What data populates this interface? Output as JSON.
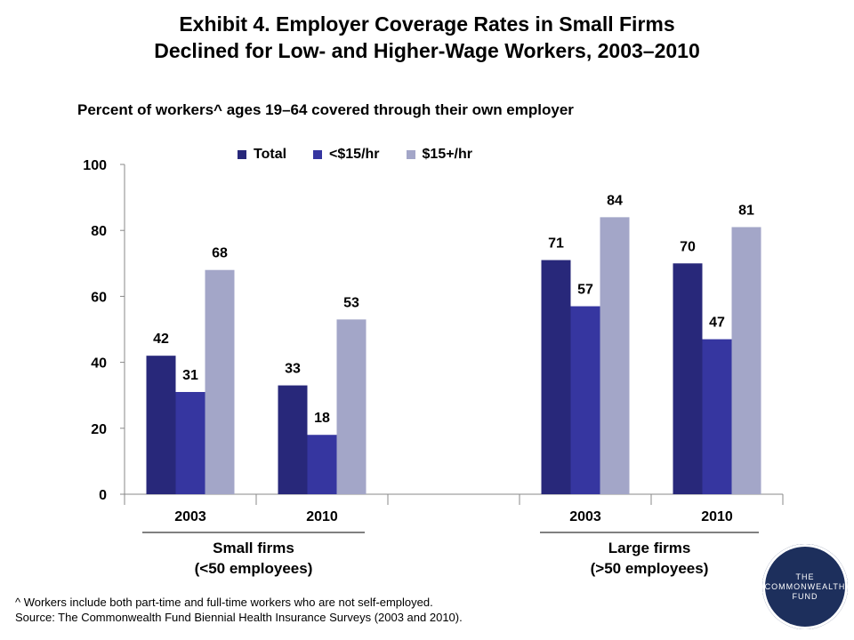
{
  "title_line1": "Exhibit 4. Employer Coverage Rates in Small Firms",
  "title_line2": "Declined for Low- and Higher-Wage Workers, 2003–2010",
  "subtitle": "Percent of workers^ ages 19–64 covered through their own employer",
  "groups": [
    {
      "label_line1": "Small firms",
      "label_line2": "(<50 employees)"
    },
    {
      "label_line1": "Large firms",
      "label_line2": "(>50 employees)"
    }
  ],
  "footnote_line1": "^ Workers include both part-time and full-time workers who are not self-employed.",
  "footnote_line2": "Source: The Commonwealth Fund Biennial Health Insurance Surveys (2003 and 2010).",
  "logo": {
    "line1": "THE",
    "line2": "COMMONWEALTH",
    "line3": "FUND"
  },
  "colors": {
    "Total": "#28287a",
    "<$15/hr": "#3636a0",
    "$15+/hr": "#a3a6c8"
  },
  "chart_data": {
    "type": "bar",
    "categories": [
      "2003",
      "2010",
      "",
      "2003",
      "2010"
    ],
    "series": [
      {
        "name": "Total",
        "values": [
          42,
          33,
          null,
          71,
          70
        ]
      },
      {
        "name": "<$15/hr",
        "values": [
          31,
          18,
          null,
          57,
          47
        ]
      },
      {
        "name": "$15+/hr",
        "values": [
          68,
          53,
          null,
          84,
          81
        ]
      }
    ],
    "ylim": [
      0,
      100
    ],
    "yticks": [
      0,
      20,
      40,
      60,
      80,
      100
    ],
    "legend": "top"
  }
}
